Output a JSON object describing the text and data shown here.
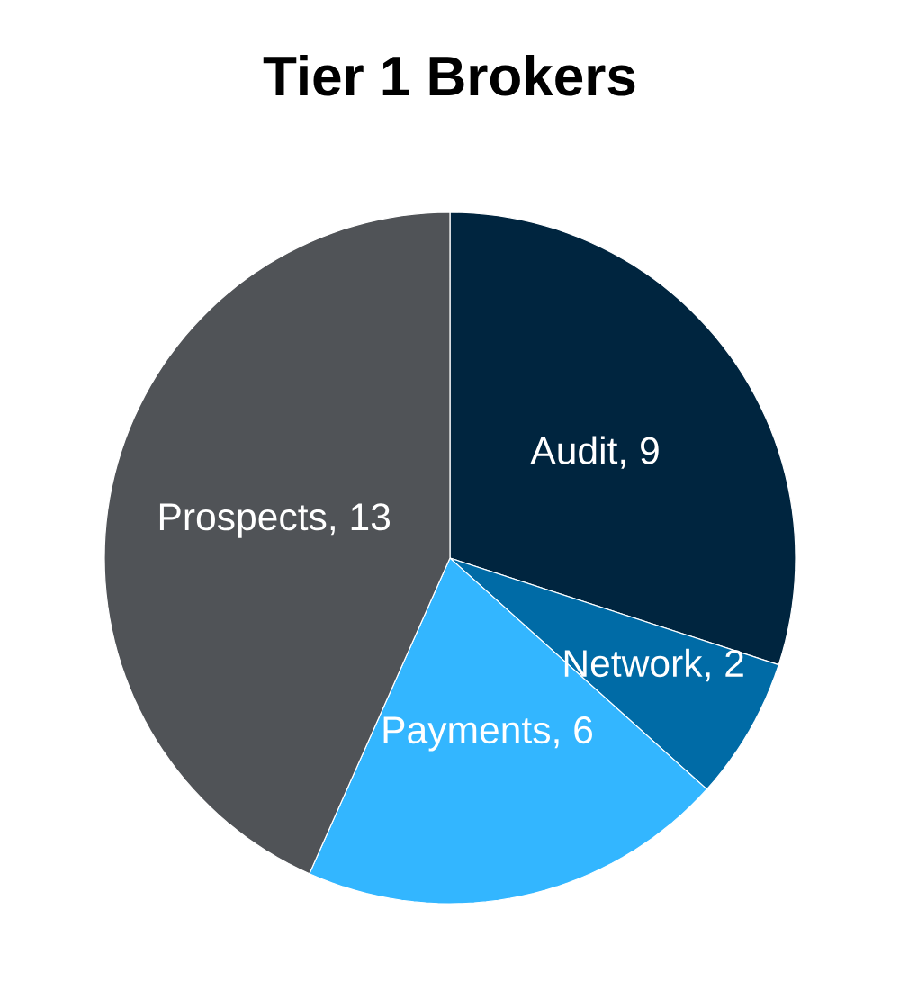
{
  "chart_data": {
    "type": "pie",
    "title": "Tier 1 Brokers",
    "categories": [
      "Audit",
      "Network",
      "Payments",
      "Prospects"
    ],
    "values": [
      9,
      2,
      6,
      13
    ],
    "colors": [
      "#00253f",
      "#006ba6",
      "#33b6ff",
      "#505357"
    ],
    "value_labels": [
      ", 9",
      ", 2",
      ", 6",
      ", 13"
    ]
  }
}
